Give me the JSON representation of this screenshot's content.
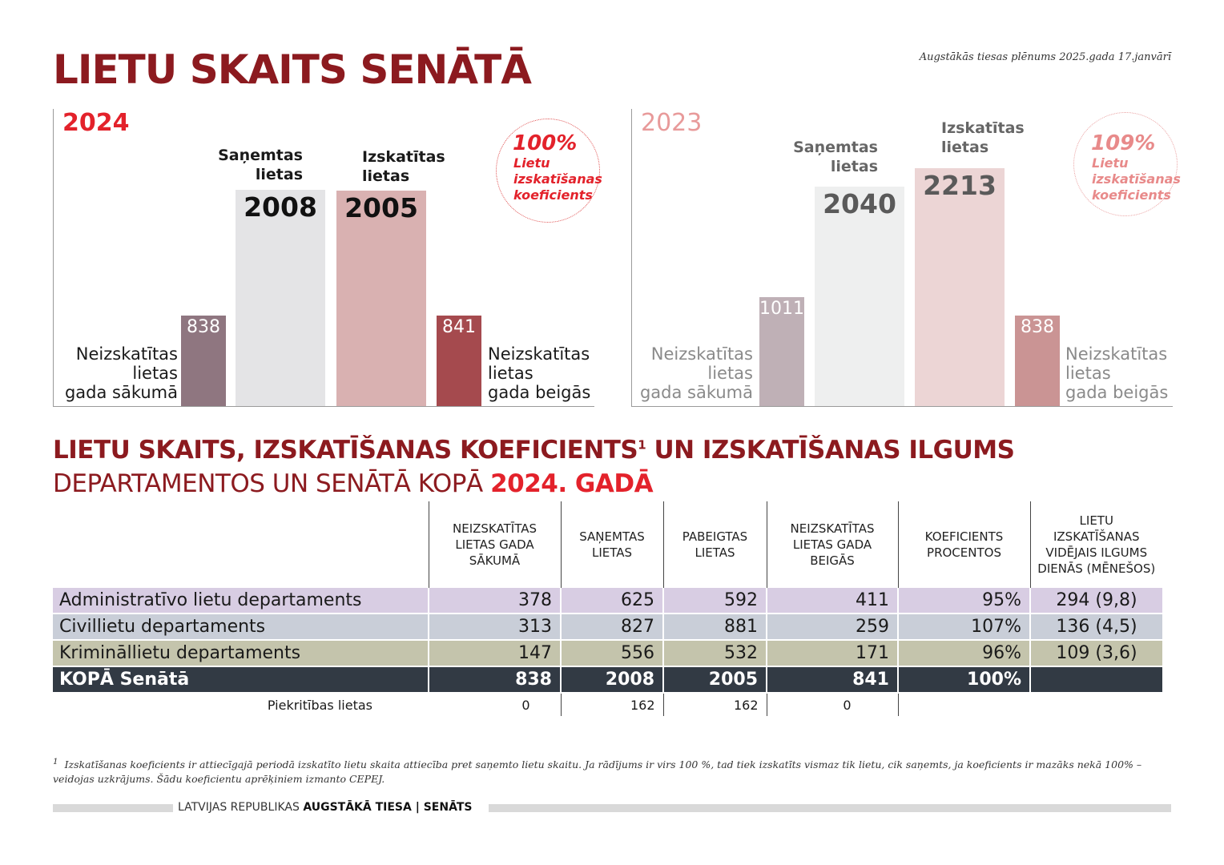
{
  "header": {
    "title": "LIETU SKAITS SENĀTĀ",
    "date_note": "Augstākās tiesas plēnums 2025.gada 17.janvārī"
  },
  "chart_data": [
    {
      "type": "bar",
      "title": "2024",
      "categories": [
        "Neizskatītas lietas gada sākumā",
        "Saņemtas lietas",
        "Izskatītas lietas",
        "Neizskatītas lietas gada beigās"
      ],
      "values": [
        838,
        2008,
        2005,
        841
      ],
      "colors": [
        "#8f7680",
        "#e4e4e6",
        "#d9b1b1",
        "#a54a4e"
      ],
      "coefficient": "100%",
      "coefficient_label": "Lietu izskatīšanas koeficients"
    },
    {
      "type": "bar",
      "title": "2023",
      "categories": [
        "Neizskatītas lietas gada sākumā",
        "Saņemtas lietas",
        "Izskatītas lietas",
        "Neizskatītas lietas gada beigās"
      ],
      "values": [
        1011,
        2040,
        2213,
        838
      ],
      "colors": [
        "#bfb0b6",
        "#eeefef",
        "#ecd5d5",
        "#ca9494"
      ],
      "coefficient": "109%",
      "coefficient_label": "Lietu izskatīšanas koeficients"
    }
  ],
  "panels": [
    {
      "year": "2024",
      "year_color": "#e3222b",
      "heads": [
        "Saņemtas\nlietas",
        "Izskatītas\nlietas"
      ],
      "left_label": "Neizskatītas\nlietas\ngada sākumā",
      "right_label": "Neizskatītas\nlietas\ngada beigās",
      "coef_pct": "100%",
      "coef_text": "Lietu\nizskatīšanas\nkoeficients",
      "vals": [
        "838",
        "2008",
        "2005",
        "841"
      ]
    },
    {
      "year": "2023",
      "year_color": "#e89a9a",
      "heads": [
        "Saņemtas\nlietas",
        "Izskatītas\nlietas"
      ],
      "left_label": "Neizskatītas\nlietas\ngada sākumā",
      "right_label": "Neizskatītas\nlietas\ngada beigās",
      "coef_pct": "109%",
      "coef_text": "Lietu\nizskatīšanas\nkoeficients",
      "vals": [
        "1011",
        "2040",
        "2213",
        "838"
      ]
    }
  ],
  "section": {
    "title_line1": "LIETU SKAITS, IZSKATĪŠANAS KOEFICIENTS",
    "title_sup": "1",
    "title_line1_rest": " UN IZSKATĪŠANAS ILGUMS",
    "title_line2": "DEPARTAMENTOS UN SENĀTĀ KOPĀ ",
    "title_line2_bold": "2024. GADĀ"
  },
  "table": {
    "headers": [
      "NEIZSKATĪTAS LIETAS GADA SĀKUMĀ",
      "SAŅEMTAS LIETAS",
      "PABEIGTAS LIETAS",
      "NEIZSKATĪTAS LIETAS GADA BEIGĀS",
      "KOEFICIENTS PROCENTOS",
      "LIETU IZSKATĪŠANAS VIDĒJAIS ILGUMS DIENĀS (MĒNEŠOS)"
    ],
    "rows": [
      {
        "name": "Administratīvo lietu departaments",
        "color": "#d8cde3",
        "cells": [
          "378",
          "625",
          "592",
          "411",
          "95%",
          "294 (9,8)"
        ]
      },
      {
        "name": "Civillietu departaments",
        "color": "#c9ced8",
        "cells": [
          "313",
          "827",
          "881",
          "259",
          "107%",
          "136 (4,5)"
        ]
      },
      {
        "name": "Krimināllietu departaments",
        "color": "#c4c4ac",
        "cells": [
          "147",
          "556",
          "532",
          "171",
          "96%",
          "109 (3,6)"
        ]
      }
    ],
    "total": {
      "name": "KOPĀ Senātā",
      "cells": [
        "838",
        "2008",
        "2005",
        "841",
        "100%",
        ""
      ]
    },
    "extra": {
      "name": "Piekritības lietas",
      "cells": [
        "0",
        "162",
        "162",
        "0"
      ]
    }
  },
  "footnote": {
    "mark": "1",
    "text": "Izskatīšanas koeficients ir attiecīgajā periodā izskatīto lietu skaita attiecība pret saņemto lietu skaitu. Ja rādījums ir virs 100 %, tad tiek izskatīts vismaz tik lietu, cik saņemts, ja koeficients ir mazāks nekā 100% – veidojas uzkrājums. Šādu koeficientu aprēķiniem izmanto CEPEJ."
  },
  "footer": {
    "prefix": "LATVIJAS REPUBLIKAS ",
    "bold": "AUGSTĀKĀ TIESA | SENĀTS"
  }
}
